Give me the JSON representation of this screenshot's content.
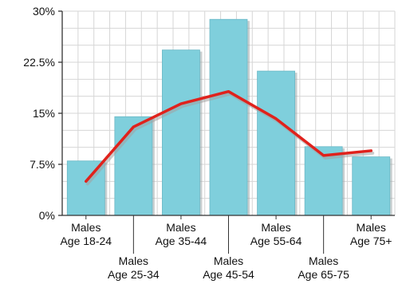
{
  "chart_data": {
    "type": "bar",
    "categories": [
      [
        "Males",
        "Age 18-24"
      ],
      [
        "Males",
        "Age 25-34"
      ],
      [
        "Males",
        "Age 35-44"
      ],
      [
        "Males",
        "Age 45-54"
      ],
      [
        "Males",
        "Age 55-64"
      ],
      [
        "Males",
        "Age 65-75"
      ],
      [
        "Males",
        "Age 75+"
      ]
    ],
    "series": [
      {
        "type": "bar",
        "values": [
          8.0,
          14.5,
          24.3,
          28.8,
          21.2,
          10.1,
          8.6
        ],
        "color": "#7fcfdc"
      },
      {
        "type": "line",
        "values": [
          5.0,
          13.0,
          16.4,
          18.2,
          14.2,
          8.8,
          9.5
        ],
        "color": "#e0221c"
      }
    ],
    "y_ticks": [
      "0%",
      "7.5%",
      "15%",
      "22.5%",
      "30%"
    ],
    "y_tick_values": [
      0,
      7.5,
      15,
      22.5,
      30
    ],
    "ylim": [
      0,
      30
    ],
    "ylabel": "",
    "xlabel": "",
    "title": "",
    "grid": true,
    "legend": "none"
  }
}
